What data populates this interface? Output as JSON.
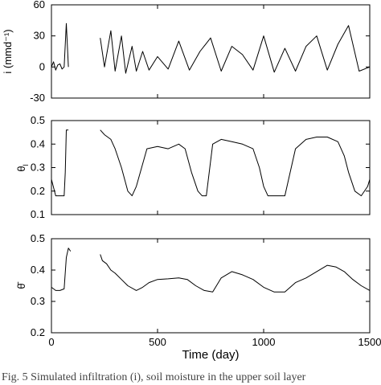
{
  "chart_data": [
    {
      "type": "line",
      "panel": "top",
      "ylabel": "i (mmd⁻¹)",
      "ylim": [
        -30,
        60
      ],
      "yticks": [
        -30,
        0,
        30,
        60
      ],
      "xlim": [
        0,
        1500
      ],
      "series": [
        {
          "x": [
            0,
            10,
            20,
            30,
            40,
            50,
            60,
            70,
            80,
            230,
            250,
            280,
            300,
            330,
            350,
            380,
            400,
            430,
            460,
            500,
            550,
            600,
            650,
            700,
            750,
            800,
            850,
            900,
            950,
            1000,
            1050,
            1100,
            1150,
            1200,
            1250,
            1300,
            1350,
            1400,
            1450,
            1500
          ],
          "y": [
            0,
            5,
            -3,
            2,
            3,
            -2,
            0,
            42,
            0,
            28,
            0,
            35,
            -4,
            30,
            -6,
            20,
            -4,
            15,
            -3,
            10,
            -2,
            25,
            -3,
            15,
            28,
            -4,
            20,
            12,
            -3,
            30,
            -5,
            18,
            -4,
            20,
            30,
            -3,
            22,
            40,
            -4,
            0
          ]
        }
      ]
    },
    {
      "type": "line",
      "panel": "middle",
      "ylabel": "θ",
      "ylabel_sub": "l",
      "ylim": [
        0.1,
        0.5
      ],
      "yticks": [
        0.1,
        0.2,
        0.3,
        0.4,
        0.5
      ],
      "xlim": [
        0,
        1500
      ],
      "series": [
        {
          "x": [
            0,
            20,
            40,
            60,
            65,
            70,
            75,
            80,
            230,
            250,
            280,
            300,
            330,
            360,
            380,
            400,
            450,
            500,
            550,
            600,
            630,
            660,
            690,
            710,
            730,
            760,
            800,
            850,
            900,
            950,
            980,
            1000,
            1020,
            1050,
            1080,
            1100,
            1150,
            1200,
            1250,
            1300,
            1350,
            1380,
            1400,
            1430,
            1460,
            1490,
            1500
          ],
          "y": [
            0.25,
            0.18,
            0.18,
            0.18,
            0.28,
            0.46,
            0.46,
            0.46,
            0.46,
            0.44,
            0.42,
            0.38,
            0.3,
            0.2,
            0.18,
            0.22,
            0.38,
            0.39,
            0.38,
            0.4,
            0.38,
            0.28,
            0.2,
            0.18,
            0.18,
            0.4,
            0.42,
            0.41,
            0.4,
            0.38,
            0.3,
            0.22,
            0.18,
            0.18,
            0.18,
            0.18,
            0.38,
            0.42,
            0.43,
            0.43,
            0.41,
            0.35,
            0.28,
            0.2,
            0.18,
            0.22,
            0.25
          ]
        }
      ]
    },
    {
      "type": "line",
      "panel": "bottom",
      "ylabel": "θ̄",
      "ylim": [
        0.2,
        0.5
      ],
      "yticks": [
        0.2,
        0.3,
        0.4,
        0.5
      ],
      "xlim": [
        0,
        1500
      ],
      "xticks": [
        0,
        500,
        1000,
        1500
      ],
      "xlabel": "Time (day)",
      "series": [
        {
          "x": [
            0,
            20,
            40,
            60,
            70,
            80,
            90,
            230,
            240,
            260,
            280,
            300,
            330,
            360,
            400,
            430,
            460,
            500,
            550,
            600,
            640,
            680,
            720,
            760,
            800,
            850,
            900,
            950,
            1000,
            1050,
            1100,
            1150,
            1200,
            1250,
            1300,
            1340,
            1380,
            1420,
            1460,
            1500
          ],
          "y": [
            0.345,
            0.335,
            0.335,
            0.34,
            0.44,
            0.47,
            0.46,
            0.45,
            0.43,
            0.42,
            0.4,
            0.39,
            0.37,
            0.35,
            0.335,
            0.345,
            0.36,
            0.37,
            0.372,
            0.375,
            0.37,
            0.35,
            0.335,
            0.33,
            0.375,
            0.395,
            0.385,
            0.37,
            0.345,
            0.33,
            0.33,
            0.36,
            0.375,
            0.395,
            0.415,
            0.41,
            0.395,
            0.37,
            0.35,
            0.335
          ]
        }
      ]
    }
  ],
  "caption": "Fig. 5   Simulated infiltration (i), soil moisture in the upper soil layer"
}
